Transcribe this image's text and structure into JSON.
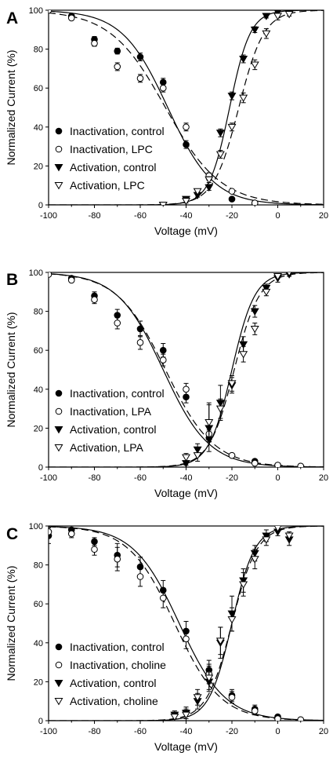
{
  "chart_data": [
    {
      "type": "scatter",
      "panel": "A",
      "xlabel": "Voltage (mV)",
      "ylabel": "Normalized Current (%)",
      "xlim": [
        -100,
        20
      ],
      "ylim": [
        0,
        100
      ],
      "xticks": [
        -100,
        -80,
        -60,
        -40,
        -20,
        0,
        20
      ],
      "yticks": [
        0,
        20,
        40,
        60,
        80,
        100
      ],
      "grid": false,
      "legend_position": "bottom-left",
      "series": [
        {
          "name": "Inactivation, control",
          "marker": "circle-filled",
          "line": "solid",
          "fit": {
            "kind": "inactivation",
            "v_half": -48,
            "k": 10
          },
          "points": [
            {
              "x": -100,
              "y": 100,
              "err": 0
            },
            {
              "x": -90,
              "y": 97,
              "err": 1
            },
            {
              "x": -80,
              "y": 85,
              "err": 1.5
            },
            {
              "x": -70,
              "y": 79,
              "err": 1.5
            },
            {
              "x": -60,
              "y": 76,
              "err": 2
            },
            {
              "x": -50,
              "y": 63,
              "err": 2
            },
            {
              "x": -40,
              "y": 31,
              "err": 2
            },
            {
              "x": -30,
              "y": 14,
              "err": 1.5
            },
            {
              "x": -20,
              "y": 3,
              "err": 1
            },
            {
              "x": -10,
              "y": 1,
              "err": 0.5
            }
          ]
        },
        {
          "name": "Inactivation, LPC",
          "marker": "circle-open",
          "line": "dashed",
          "fit": {
            "kind": "inactivation",
            "v_half": -49,
            "k": 12
          },
          "points": [
            {
              "x": -100,
              "y": 100,
              "err": 0
            },
            {
              "x": -90,
              "y": 96,
              "err": 1
            },
            {
              "x": -80,
              "y": 83,
              "err": 1.5
            },
            {
              "x": -70,
              "y": 71,
              "err": 2
            },
            {
              "x": -60,
              "y": 65,
              "err": 2
            },
            {
              "x": -50,
              "y": 60,
              "err": 2
            },
            {
              "x": -40,
              "y": 40,
              "err": 2
            },
            {
              "x": -30,
              "y": 15,
              "err": 1.5
            },
            {
              "x": -20,
              "y": 7,
              "err": 1
            },
            {
              "x": -10,
              "y": 1,
              "err": 0.5
            }
          ]
        },
        {
          "name": "Activation, control",
          "marker": "triangle-down-filled",
          "line": "solid",
          "fit": {
            "kind": "activation",
            "v_half": -21,
            "k": 4.5
          },
          "points": [
            {
              "x": -50,
              "y": 0,
              "err": 0
            },
            {
              "x": -40,
              "y": 3,
              "err": 1
            },
            {
              "x": -35,
              "y": 5,
              "err": 1
            },
            {
              "x": -30,
              "y": 9,
              "err": 1.5
            },
            {
              "x": -25,
              "y": 37,
              "err": 2
            },
            {
              "x": -20,
              "y": 56,
              "err": 2
            },
            {
              "x": -15,
              "y": 75,
              "err": 2
            },
            {
              "x": -10,
              "y": 90,
              "err": 1.5
            },
            {
              "x": -5,
              "y": 97,
              "err": 1
            },
            {
              "x": 0,
              "y": 99,
              "err": 1
            },
            {
              "x": 5,
              "y": 99,
              "err": 0.5
            }
          ]
        },
        {
          "name": "Activation, LPC",
          "marker": "triangle-down-open",
          "line": "dashed",
          "fit": {
            "kind": "activation",
            "v_half": -17,
            "k": 5.5
          },
          "points": [
            {
              "x": -50,
              "y": 0,
              "err": 0
            },
            {
              "x": -40,
              "y": 2,
              "err": 1
            },
            {
              "x": -35,
              "y": 7,
              "err": 1
            },
            {
              "x": -30,
              "y": 13,
              "err": 1.5
            },
            {
              "x": -25,
              "y": 26,
              "err": 2
            },
            {
              "x": -20,
              "y": 40,
              "err": 2
            },
            {
              "x": -15,
              "y": 55,
              "err": 2.5
            },
            {
              "x": -10,
              "y": 72,
              "err": 2.5
            },
            {
              "x": -5,
              "y": 88,
              "err": 2.5
            },
            {
              "x": 0,
              "y": 97,
              "err": 2
            },
            {
              "x": 5,
              "y": 98,
              "err": 1
            }
          ]
        }
      ]
    },
    {
      "type": "scatter",
      "panel": "B",
      "xlabel": "Voltage (mV)",
      "ylabel": "Normalized Current (%)",
      "xlim": [
        -100,
        20
      ],
      "ylim": [
        0,
        100
      ],
      "xticks": [
        -100,
        -80,
        -60,
        -40,
        -20,
        0,
        20
      ],
      "yticks": [
        0,
        20,
        40,
        60,
        80,
        100
      ],
      "grid": false,
      "legend_position": "bottom-left",
      "series": [
        {
          "name": "Inactivation, control",
          "marker": "circle-filled",
          "line": "solid",
          "fit": {
            "kind": "inactivation",
            "v_half": -50,
            "k": 10
          },
          "points": [
            {
              "x": -100,
              "y": 99,
              "err": 1
            },
            {
              "x": -90,
              "y": 97,
              "err": 1
            },
            {
              "x": -80,
              "y": 88,
              "err": 2
            },
            {
              "x": -70,
              "y": 78,
              "err": 3
            },
            {
              "x": -60,
              "y": 71,
              "err": 4
            },
            {
              "x": -50,
              "y": 60,
              "err": 3.5
            },
            {
              "x": -40,
              "y": 36,
              "err": 3
            },
            {
              "x": -30,
              "y": 15,
              "err": 2
            },
            {
              "x": -20,
              "y": 6,
              "err": 1
            },
            {
              "x": -10,
              "y": 3,
              "err": 0.5
            },
            {
              "x": 0,
              "y": 1,
              "err": 0.5
            },
            {
              "x": 10,
              "y": 0.5,
              "err": 0.5
            }
          ]
        },
        {
          "name": "Inactivation, LPA",
          "marker": "circle-open",
          "line": "dashed",
          "fit": {
            "kind": "inactivation",
            "v_half": -49,
            "k": 10.5
          },
          "points": [
            {
              "x": -100,
              "y": 99,
              "err": 1
            },
            {
              "x": -90,
              "y": 96,
              "err": 1
            },
            {
              "x": -80,
              "y": 86,
              "err": 2
            },
            {
              "x": -70,
              "y": 74,
              "err": 3
            },
            {
              "x": -60,
              "y": 64,
              "err": 3.5
            },
            {
              "x": -50,
              "y": 55,
              "err": 3
            },
            {
              "x": -40,
              "y": 40,
              "err": 3
            },
            {
              "x": -30,
              "y": 17,
              "err": 2
            },
            {
              "x": -20,
              "y": 6,
              "err": 1
            },
            {
              "x": -10,
              "y": 2,
              "err": 0.5
            },
            {
              "x": 0,
              "y": 1,
              "err": 0.5
            },
            {
              "x": 10,
              "y": 0.5,
              "err": 0.5
            }
          ]
        },
        {
          "name": "Activation, control",
          "marker": "triangle-down-filled",
          "line": "solid",
          "fit": {
            "kind": "activation",
            "v_half": -20,
            "k": 5
          },
          "points": [
            {
              "x": -40,
              "y": 2,
              "err": 1
            },
            {
              "x": -35,
              "y": 9,
              "err": 3
            },
            {
              "x": -30,
              "y": 20,
              "err": 12
            },
            {
              "x": -25,
              "y": 33,
              "err": 9
            },
            {
              "x": -20,
              "y": 42,
              "err": 4
            },
            {
              "x": -15,
              "y": 63,
              "err": 4
            },
            {
              "x": -10,
              "y": 80,
              "err": 3
            },
            {
              "x": -5,
              "y": 92,
              "err": 2
            },
            {
              "x": 0,
              "y": 97,
              "err": 2
            },
            {
              "x": 5,
              "y": 99,
              "err": 1
            }
          ]
        },
        {
          "name": "Activation, LPA",
          "marker": "triangle-down-open",
          "line": "dashed",
          "fit": {
            "kind": "activation",
            "v_half": -19,
            "k": 5.5
          },
          "points": [
            {
              "x": -40,
              "y": 5,
              "err": 2
            },
            {
              "x": -35,
              "y": 6,
              "err": 3
            },
            {
              "x": -30,
              "y": 23,
              "err": 10
            },
            {
              "x": -25,
              "y": 30,
              "err": 5
            },
            {
              "x": -20,
              "y": 43,
              "err": 4
            },
            {
              "x": -15,
              "y": 58,
              "err": 4
            },
            {
              "x": -10,
              "y": 71,
              "err": 3
            },
            {
              "x": -5,
              "y": 90,
              "err": 2
            },
            {
              "x": 0,
              "y": 98,
              "err": 1
            },
            {
              "x": 5,
              "y": 100,
              "err": 0
            }
          ]
        }
      ]
    },
    {
      "type": "scatter",
      "panel": "C",
      "xlabel": "Voltage (mV)",
      "ylabel": "Normalized Current (%)",
      "xlim": [
        -100,
        20
      ],
      "ylim": [
        0,
        100
      ],
      "xticks": [
        -100,
        -80,
        -60,
        -40,
        -20,
        0,
        20
      ],
      "yticks": [
        0,
        20,
        40,
        60,
        80,
        100
      ],
      "grid": false,
      "legend_position": "bottom-left",
      "series": [
        {
          "name": "Inactivation, control",
          "marker": "circle-filled",
          "line": "solid",
          "fit": {
            "kind": "inactivation",
            "v_half": -43,
            "k": 10
          },
          "points": [
            {
              "x": -100,
              "y": 95,
              "err": 4
            },
            {
              "x": -90,
              "y": 98,
              "err": 1
            },
            {
              "x": -80,
              "y": 92,
              "err": 2
            },
            {
              "x": -70,
              "y": 85,
              "err": 6
            },
            {
              "x": -60,
              "y": 79,
              "err": 5
            },
            {
              "x": -50,
              "y": 67,
              "err": 5
            },
            {
              "x": -40,
              "y": 46,
              "err": 5
            },
            {
              "x": -30,
              "y": 26,
              "err": 5
            },
            {
              "x": -20,
              "y": 13,
              "err": 3
            },
            {
              "x": -10,
              "y": 6,
              "err": 2
            },
            {
              "x": 0,
              "y": 2,
              "err": 1
            },
            {
              "x": 10,
              "y": 0.5,
              "err": 0.5
            }
          ]
        },
        {
          "name": "Inactivation, choline",
          "marker": "circle-open",
          "line": "dashed",
          "fit": {
            "kind": "inactivation",
            "v_half": -45,
            "k": 10
          },
          "points": [
            {
              "x": -100,
              "y": 97,
              "err": 2
            },
            {
              "x": -90,
              "y": 96,
              "err": 2
            },
            {
              "x": -80,
              "y": 88,
              "err": 3
            },
            {
              "x": -70,
              "y": 83,
              "err": 6
            },
            {
              "x": -60,
              "y": 74,
              "err": 5
            },
            {
              "x": -50,
              "y": 63,
              "err": 5
            },
            {
              "x": -40,
              "y": 42,
              "err": 5
            },
            {
              "x": -30,
              "y": 24,
              "err": 5
            },
            {
              "x": -20,
              "y": 12,
              "err": 3
            },
            {
              "x": -10,
              "y": 5,
              "err": 2
            },
            {
              "x": 0,
              "y": 1,
              "err": 1
            },
            {
              "x": 10,
              "y": 0.5,
              "err": 0.5
            }
          ]
        },
        {
          "name": "Activation, control",
          "marker": "triangle-down-filled",
          "line": "solid",
          "fit": {
            "kind": "activation",
            "v_half": -20,
            "k": 5
          },
          "points": [
            {
              "x": -45,
              "y": 3,
              "err": 2
            },
            {
              "x": -40,
              "y": 4,
              "err": 3
            },
            {
              "x": -35,
              "y": 10,
              "err": 4
            },
            {
              "x": -30,
              "y": 20,
              "err": 5
            },
            {
              "x": -25,
              "y": 40,
              "err": 8
            },
            {
              "x": -20,
              "y": 55,
              "err": 9
            },
            {
              "x": -15,
              "y": 72,
              "err": 6
            },
            {
              "x": -10,
              "y": 86,
              "err": 4
            },
            {
              "x": -5,
              "y": 95,
              "err": 3
            },
            {
              "x": 0,
              "y": 97,
              "err": 2
            },
            {
              "x": 5,
              "y": 93,
              "err": 3
            }
          ]
        },
        {
          "name": "Activation, choline",
          "marker": "triangle-down-open",
          "line": "dashed",
          "fit": {
            "kind": "activation",
            "v_half": -20,
            "k": 5.5
          },
          "points": [
            {
              "x": -45,
              "y": 2,
              "err": 2
            },
            {
              "x": -40,
              "y": 3,
              "err": 3
            },
            {
              "x": -35,
              "y": 12,
              "err": 4
            },
            {
              "x": -30,
              "y": 22,
              "err": 6
            },
            {
              "x": -25,
              "y": 41,
              "err": 7
            },
            {
              "x": -20,
              "y": 52,
              "err": 6
            },
            {
              "x": -15,
              "y": 70,
              "err": 6
            },
            {
              "x": -10,
              "y": 83,
              "err": 5
            },
            {
              "x": -5,
              "y": 93,
              "err": 3
            },
            {
              "x": 0,
              "y": 99,
              "err": 1
            },
            {
              "x": 5,
              "y": 95,
              "err": 2
            }
          ]
        }
      ]
    }
  ]
}
